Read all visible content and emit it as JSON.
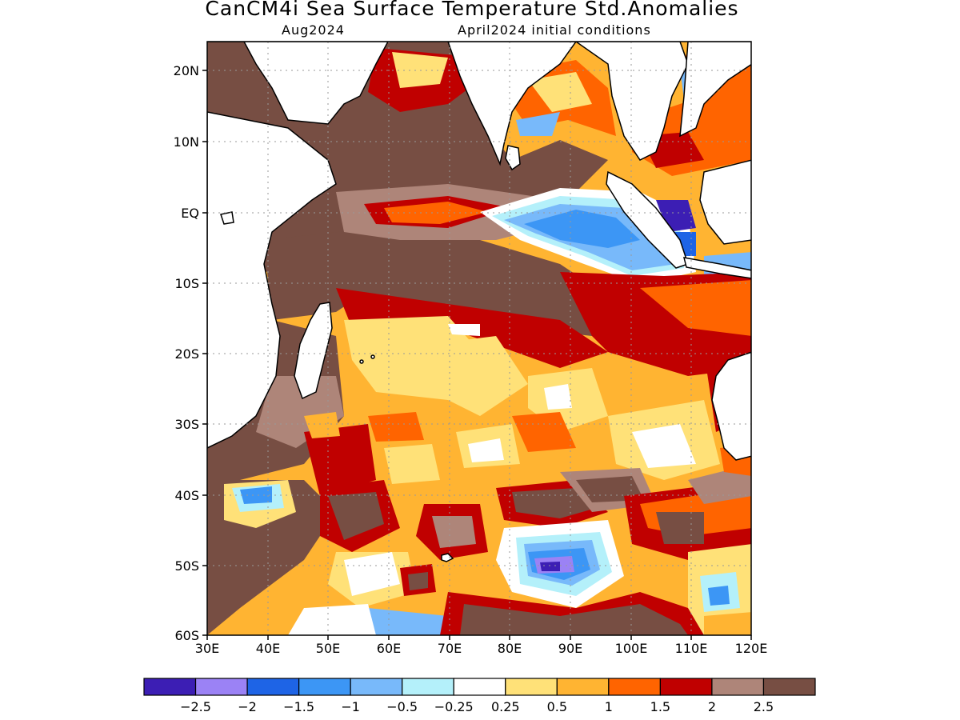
{
  "title": "CanCM4i Sea Surface Temperature Std.Anomalies",
  "subtitle_left": "Aug2024",
  "subtitle_right": "April2024 initial conditions",
  "lat_ticks": [
    "20N",
    "10N",
    "EQ",
    "10S",
    "20S",
    "30S",
    "40S",
    "50S",
    "60S"
  ],
  "lon_ticks": [
    "30E",
    "40E",
    "50E",
    "60E",
    "70E",
    "80E",
    "90E",
    "100E",
    "110E",
    "120E"
  ],
  "colorbar": {
    "colors": [
      "#3c1eb4",
      "#9b82f5",
      "#1e64e6",
      "#3c96f5",
      "#78b9fa",
      "#b4f0fa",
      "#ffffff",
      "#ffe178",
      "#ffb432",
      "#ff6400",
      "#c00000",
      "#ae8579",
      "#774e43"
    ],
    "labels": [
      "−2.5",
      "−2",
      "−1.5",
      "−1",
      "−0.5",
      "−0.25",
      "0.25",
      "0.5",
      "1",
      "1.5",
      "2",
      "2.5"
    ]
  },
  "colors": {
    "land": "#ffffff",
    "coast": "#000000",
    "grid": "#999999"
  }
}
